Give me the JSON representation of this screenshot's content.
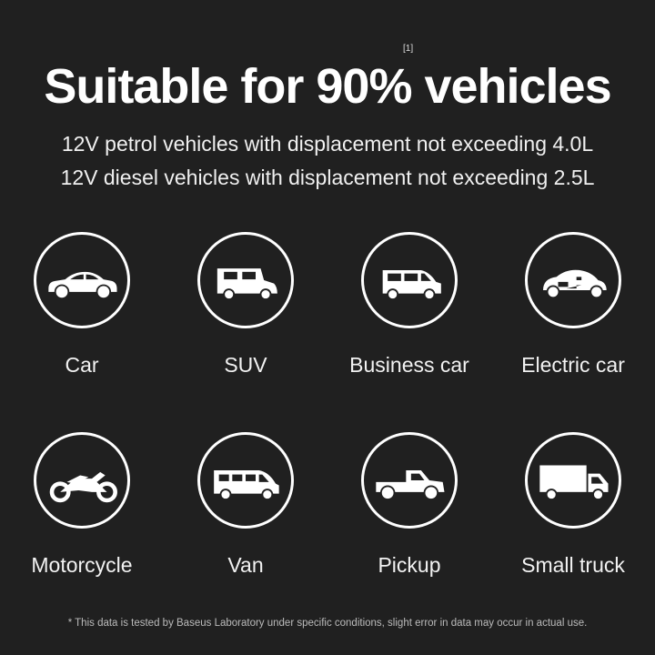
{
  "title": {
    "text": "Suitable for 90% vehicles",
    "footnote_ref": "[1]"
  },
  "subtitles": [
    "12V petrol vehicles with displacement not exceeding 4.0L",
    "12V diesel vehicles with displacement not exceeding 2.5L"
  ],
  "vehicles": [
    {
      "label": "Car",
      "icon": "sedan-icon"
    },
    {
      "label": "SUV",
      "icon": "suv-icon"
    },
    {
      "label": "Business car",
      "icon": "minivan-icon"
    },
    {
      "label": "Electric car",
      "icon": "electric-car-icon"
    },
    {
      "label": "Motorcycle",
      "icon": "motorcycle-icon"
    },
    {
      "label": "Van",
      "icon": "van-icon"
    },
    {
      "label": "Pickup",
      "icon": "pickup-icon"
    },
    {
      "label": "Small truck",
      "icon": "truck-icon"
    }
  ],
  "footnote": "* This data is tested by Baseus Laboratory under specific conditions, slight error in data may occur in actual use."
}
